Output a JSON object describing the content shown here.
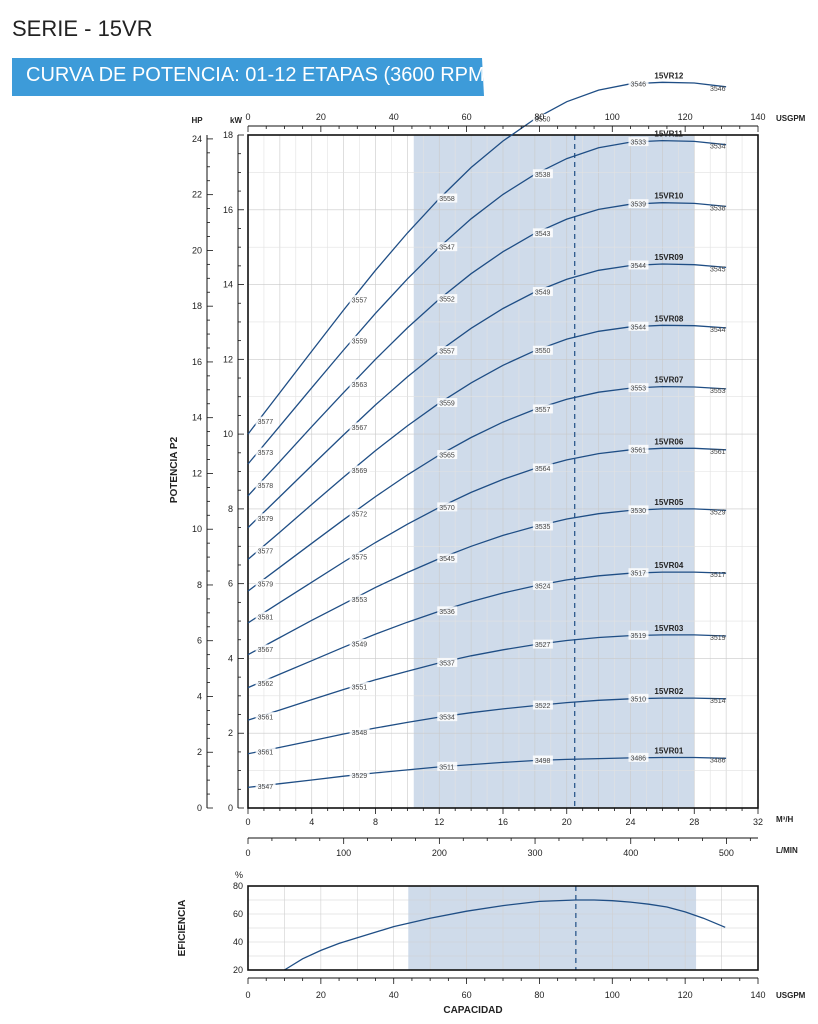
{
  "header": {
    "serie": "SERIE - 15VR",
    "banner": "CURVA DE POTENCIA: 01-12 ETAPAS (3600 RPM)",
    "banner_color": "#3d9bd9"
  },
  "chart_data": [
    {
      "type": "line",
      "ylabel": "POTENCIA P2",
      "x_axes": {
        "usgpm": {
          "unit": "USGPM",
          "range": [
            0,
            140
          ],
          "ticks": [
            0,
            20,
            40,
            60,
            80,
            100,
            120,
            140
          ]
        },
        "m3h": {
          "unit": "M³/H",
          "range": [
            0,
            32
          ],
          "ticks": [
            0,
            4,
            8,
            12,
            16,
            20,
            24,
            28,
            32
          ]
        },
        "lmin": {
          "unit": "L/MIN",
          "range": [
            0,
            533
          ],
          "ticks": [
            0,
            100,
            200,
            300,
            400,
            500
          ]
        }
      },
      "y_axes": {
        "kw": {
          "unit": "kW",
          "range": [
            0,
            18
          ],
          "ticks": [
            0,
            2,
            4,
            6,
            8,
            10,
            12,
            14,
            16,
            18
          ]
        },
        "hp": {
          "unit": "HP",
          "range": [
            0,
            24.14
          ],
          "ticks": [
            0,
            2,
            4,
            6,
            8,
            10,
            12,
            14,
            16,
            18,
            20,
            22,
            24
          ]
        }
      },
      "operating_range_m3h": [
        10.4,
        28
      ],
      "duty_point_m3h": 20.5,
      "shade_color": "#cfdbea",
      "curve_color": "#1f4e85",
      "grid": true,
      "series": [
        {
          "name": "15VR01",
          "x": [
            0,
            2,
            4,
            6,
            8,
            10,
            12,
            14,
            16,
            18,
            20,
            22,
            24,
            26,
            28,
            30
          ],
          "y": [
            0.55,
            0.65,
            0.75,
            0.85,
            0.94,
            1.02,
            1.1,
            1.16,
            1.22,
            1.27,
            1.3,
            1.32,
            1.34,
            1.35,
            1.35,
            1.33
          ],
          "rpm_labels": [
            {
              "x": 0.6,
              "text": "3547"
            },
            {
              "x": 6.5,
              "text": "3529"
            },
            {
              "x": 12,
              "text": "3511"
            },
            {
              "x": 18,
              "text": "3498"
            },
            {
              "x": 24,
              "text": "3486"
            }
          ],
          "end_label": "3486"
        },
        {
          "name": "15VR02",
          "x": [
            0,
            2,
            4,
            6,
            8,
            10,
            12,
            14,
            16,
            18,
            20,
            22,
            24,
            26,
            28,
            30
          ],
          "y": [
            1.45,
            1.62,
            1.8,
            1.98,
            2.14,
            2.29,
            2.43,
            2.55,
            2.65,
            2.74,
            2.82,
            2.88,
            2.92,
            2.94,
            2.94,
            2.92
          ],
          "rpm_labels": [
            {
              "x": 0.6,
              "text": "3561"
            },
            {
              "x": 6.5,
              "text": "3548"
            },
            {
              "x": 12,
              "text": "3534"
            },
            {
              "x": 18,
              "text": "3522"
            },
            {
              "x": 24,
              "text": "3510"
            }
          ],
          "end_label": "3514"
        },
        {
          "name": "15VR03",
          "x": [
            0,
            2,
            4,
            6,
            8,
            10,
            12,
            14,
            16,
            18,
            20,
            22,
            24,
            26,
            28,
            30
          ],
          "y": [
            2.35,
            2.62,
            2.9,
            3.17,
            3.43,
            3.66,
            3.88,
            4.07,
            4.23,
            4.37,
            4.48,
            4.56,
            4.61,
            4.63,
            4.63,
            4.6
          ],
          "rpm_labels": [
            {
              "x": 0.6,
              "text": "3561"
            },
            {
              "x": 6.5,
              "text": "3551"
            },
            {
              "x": 12,
              "text": "3537"
            },
            {
              "x": 18,
              "text": "3527"
            },
            {
              "x": 24,
              "text": "3519"
            }
          ],
          "end_label": "3519"
        },
        {
          "name": "15VR04",
          "x": [
            0,
            2,
            4,
            6,
            8,
            10,
            12,
            14,
            16,
            18,
            20,
            22,
            24,
            26,
            28,
            30
          ],
          "y": [
            3.22,
            3.58,
            3.94,
            4.3,
            4.65,
            4.97,
            5.26,
            5.52,
            5.75,
            5.94,
            6.1,
            6.21,
            6.28,
            6.31,
            6.31,
            6.28
          ],
          "rpm_labels": [
            {
              "x": 0.6,
              "text": "3562"
            },
            {
              "x": 6.5,
              "text": "3549"
            },
            {
              "x": 12,
              "text": "3536"
            },
            {
              "x": 18,
              "text": "3524"
            },
            {
              "x": 24,
              "text": "3517"
            }
          ],
          "end_label": "3517"
        },
        {
          "name": "15VR05",
          "x": [
            0,
            2,
            4,
            6,
            8,
            10,
            12,
            14,
            16,
            18,
            20,
            22,
            24,
            26,
            28,
            30
          ],
          "y": [
            4.1,
            4.56,
            5.02,
            5.46,
            5.9,
            6.3,
            6.67,
            7.0,
            7.29,
            7.53,
            7.73,
            7.87,
            7.96,
            8.0,
            8.0,
            7.96
          ],
          "rpm_labels": [
            {
              "x": 0.6,
              "text": "3567"
            },
            {
              "x": 6.5,
              "text": "3553"
            },
            {
              "x": 12,
              "text": "3545"
            },
            {
              "x": 18,
              "text": "3535"
            },
            {
              "x": 24,
              "text": "3530"
            }
          ],
          "end_label": "3529"
        },
        {
          "name": "15VR06",
          "x": [
            0,
            2,
            4,
            6,
            8,
            10,
            12,
            14,
            16,
            18,
            20,
            22,
            24,
            26,
            28,
            30
          ],
          "y": [
            4.95,
            5.5,
            6.04,
            6.58,
            7.1,
            7.59,
            8.04,
            8.44,
            8.79,
            9.08,
            9.31,
            9.48,
            9.58,
            9.62,
            9.62,
            9.58
          ],
          "rpm_labels": [
            {
              "x": 0.6,
              "text": "3581"
            },
            {
              "x": 6.5,
              "text": "3575"
            },
            {
              "x": 12,
              "text": "3570"
            },
            {
              "x": 18,
              "text": "3564"
            },
            {
              "x": 24,
              "text": "3561"
            }
          ],
          "end_label": "3561"
        },
        {
          "name": "15VR07",
          "x": [
            0,
            2,
            4,
            6,
            8,
            10,
            12,
            14,
            16,
            18,
            20,
            22,
            24,
            26,
            28,
            30
          ],
          "y": [
            5.8,
            6.44,
            7.08,
            7.71,
            8.33,
            8.91,
            9.44,
            9.91,
            10.32,
            10.66,
            10.93,
            11.12,
            11.23,
            11.27,
            11.26,
            11.21
          ],
          "rpm_labels": [
            {
              "x": 0.6,
              "text": "3579"
            },
            {
              "x": 6.5,
              "text": "3572"
            },
            {
              "x": 12,
              "text": "3565"
            },
            {
              "x": 18,
              "text": "3557"
            },
            {
              "x": 24,
              "text": "3553"
            }
          ],
          "end_label": "3553"
        },
        {
          "name": "15VR08",
          "x": [
            0,
            2,
            4,
            6,
            8,
            10,
            12,
            14,
            16,
            18,
            20,
            22,
            24,
            26,
            28,
            30
          ],
          "y": [
            6.65,
            7.38,
            8.12,
            8.85,
            9.56,
            10.22,
            10.83,
            11.37,
            11.84,
            12.23,
            12.54,
            12.75,
            12.87,
            12.91,
            12.9,
            12.84
          ],
          "rpm_labels": [
            {
              "x": 0.6,
              "text": "3577"
            },
            {
              "x": 6.5,
              "text": "3569"
            },
            {
              "x": 12,
              "text": "3559"
            },
            {
              "x": 18,
              "text": "3550"
            },
            {
              "x": 24,
              "text": "3544"
            }
          ],
          "end_label": "3544"
        },
        {
          "name": "15VR09",
          "x": [
            0,
            2,
            4,
            6,
            8,
            10,
            12,
            14,
            16,
            18,
            20,
            22,
            24,
            26,
            28,
            30
          ],
          "y": [
            7.5,
            8.33,
            9.16,
            9.98,
            10.78,
            11.53,
            12.22,
            12.83,
            13.36,
            13.8,
            14.14,
            14.38,
            14.51,
            14.55,
            14.53,
            14.46
          ],
          "rpm_labels": [
            {
              "x": 0.6,
              "text": "3579"
            },
            {
              "x": 6.5,
              "text": "3567"
            },
            {
              "x": 12,
              "text": "3557"
            },
            {
              "x": 18,
              "text": "3549"
            },
            {
              "x": 24,
              "text": "3544"
            }
          ],
          "end_label": "3545"
        },
        {
          "name": "15VR10",
          "x": [
            0,
            2,
            4,
            6,
            8,
            10,
            12,
            14,
            16,
            18,
            20,
            22,
            24,
            26,
            28,
            30
          ],
          "y": [
            8.35,
            9.27,
            10.2,
            11.11,
            12.0,
            12.84,
            13.61,
            14.29,
            14.88,
            15.37,
            15.75,
            16.01,
            16.15,
            16.19,
            16.17,
            16.09
          ],
          "rpm_labels": [
            {
              "x": 0.6,
              "text": "3578"
            },
            {
              "x": 6.5,
              "text": "3563"
            },
            {
              "x": 12,
              "text": "3552"
            },
            {
              "x": 18,
              "text": "3543"
            },
            {
              "x": 24,
              "text": "3539"
            }
          ],
          "end_label": "3538"
        },
        {
          "name": "15VR11",
          "x": [
            0,
            2,
            4,
            6,
            8,
            10,
            12,
            14,
            16,
            18,
            20,
            22,
            24,
            26,
            28,
            30
          ],
          "y": [
            9.2,
            10.22,
            11.24,
            12.25,
            13.23,
            14.15,
            15.0,
            15.76,
            16.41,
            16.95,
            17.37,
            17.66,
            17.81,
            17.85,
            17.83,
            17.74
          ],
          "rpm_labels": [
            {
              "x": 0.6,
              "text": "3573"
            },
            {
              "x": 6.5,
              "text": "3559"
            },
            {
              "x": 12,
              "text": "3547"
            },
            {
              "x": 18,
              "text": "3538"
            },
            {
              "x": 24,
              "text": "3533"
            }
          ],
          "end_label": "3534"
        },
        {
          "name": "15VR12",
          "x": [
            0,
            2,
            4,
            6,
            8,
            10,
            12,
            14,
            16,
            18,
            20,
            22,
            24,
            26,
            28,
            30
          ],
          "y": [
            10.0,
            11.11,
            12.22,
            13.32,
            14.38,
            15.38,
            16.3,
            17.13,
            17.84,
            18.43,
            18.89,
            19.2,
            19.37,
            19.41,
            19.39,
            19.29
          ],
          "rpm_labels": [
            {
              "x": 0.6,
              "text": "3577"
            },
            {
              "x": 6.5,
              "text": "3557"
            },
            {
              "x": 12,
              "text": "3558"
            },
            {
              "x": 18,
              "text": "3550"
            },
            {
              "x": 24,
              "text": "3546"
            }
          ],
          "end_label": "3546"
        }
      ]
    },
    {
      "type": "line",
      "ylabel": "EFICIENCIA",
      "xlabel": "CAPACIDAD",
      "y_unit": "%",
      "yticks": [
        20,
        40,
        60,
        80
      ],
      "ylim": [
        20,
        80
      ],
      "x_unit": "USGPM",
      "xticks": [
        0,
        20,
        40,
        60,
        80,
        100,
        120,
        140
      ],
      "xlim": [
        0,
        140
      ],
      "operating_range_usgpm": [
        44,
        123
      ],
      "duty_point_usgpm": 90,
      "series": [
        {
          "x": [
            10,
            15,
            20,
            25,
            30,
            40,
            50,
            60,
            70,
            80,
            90,
            95,
            100,
            105,
            110,
            115,
            120,
            125,
            131
          ],
          "y": [
            20,
            28,
            34,
            39,
            43,
            51,
            57,
            62,
            66,
            69,
            70,
            70,
            69.5,
            68.5,
            67,
            65,
            61.5,
            57,
            50.5
          ]
        }
      ]
    }
  ]
}
